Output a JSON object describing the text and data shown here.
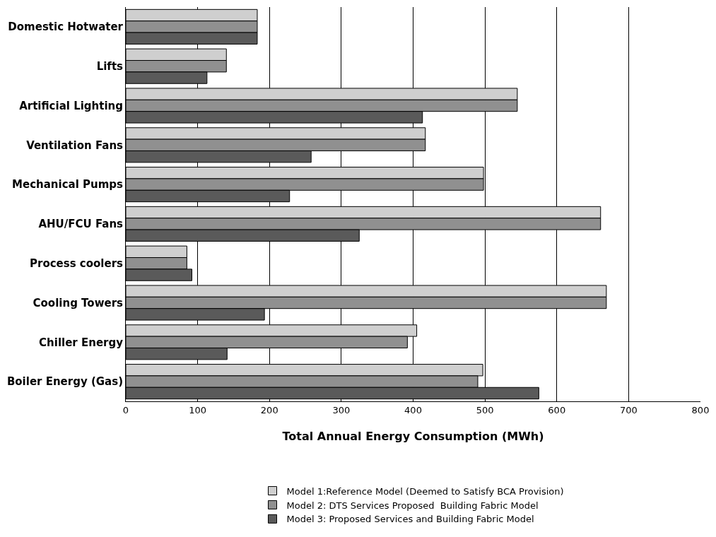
{
  "chart_data": {
    "type": "bar",
    "orientation": "horizontal",
    "xlabel": "Total Annual Energy Consumption (MWh)",
    "categories": [
      "Domestic Hotwater",
      "Lifts",
      "Artificial Lighting",
      "Ventilation Fans",
      "Mechanical Pumps",
      "AHU/FCU Fans",
      "Process coolers",
      "Cooling Towers",
      "Chiller Energy",
      "Boiler Energy (Gas)"
    ],
    "series": [
      {
        "name": "Model 1:Reference Model (Deemed to Satisfy BCA Provision)",
        "color": "#cfcfcf",
        "values": [
          183,
          140,
          545,
          417,
          498,
          661,
          85,
          669,
          405,
          497
        ]
      },
      {
        "name": "Model 2: DTS Services Proposed  Building Fabric Model",
        "color": "#909090",
        "values": [
          183,
          140,
          545,
          417,
          498,
          661,
          85,
          669,
          392,
          490
        ]
      },
      {
        "name": "Model 3: Proposed Services and Building Fabric Model",
        "color": "#5a5a5a",
        "values": [
          183,
          113,
          413,
          258,
          228,
          325,
          92,
          193,
          141,
          575
        ]
      }
    ],
    "xlim": [
      0,
      800
    ],
    "xticks": [
      0,
      100,
      200,
      300,
      400,
      500,
      600,
      700,
      800
    ],
    "grid": "x",
    "legend": "bottom"
  }
}
